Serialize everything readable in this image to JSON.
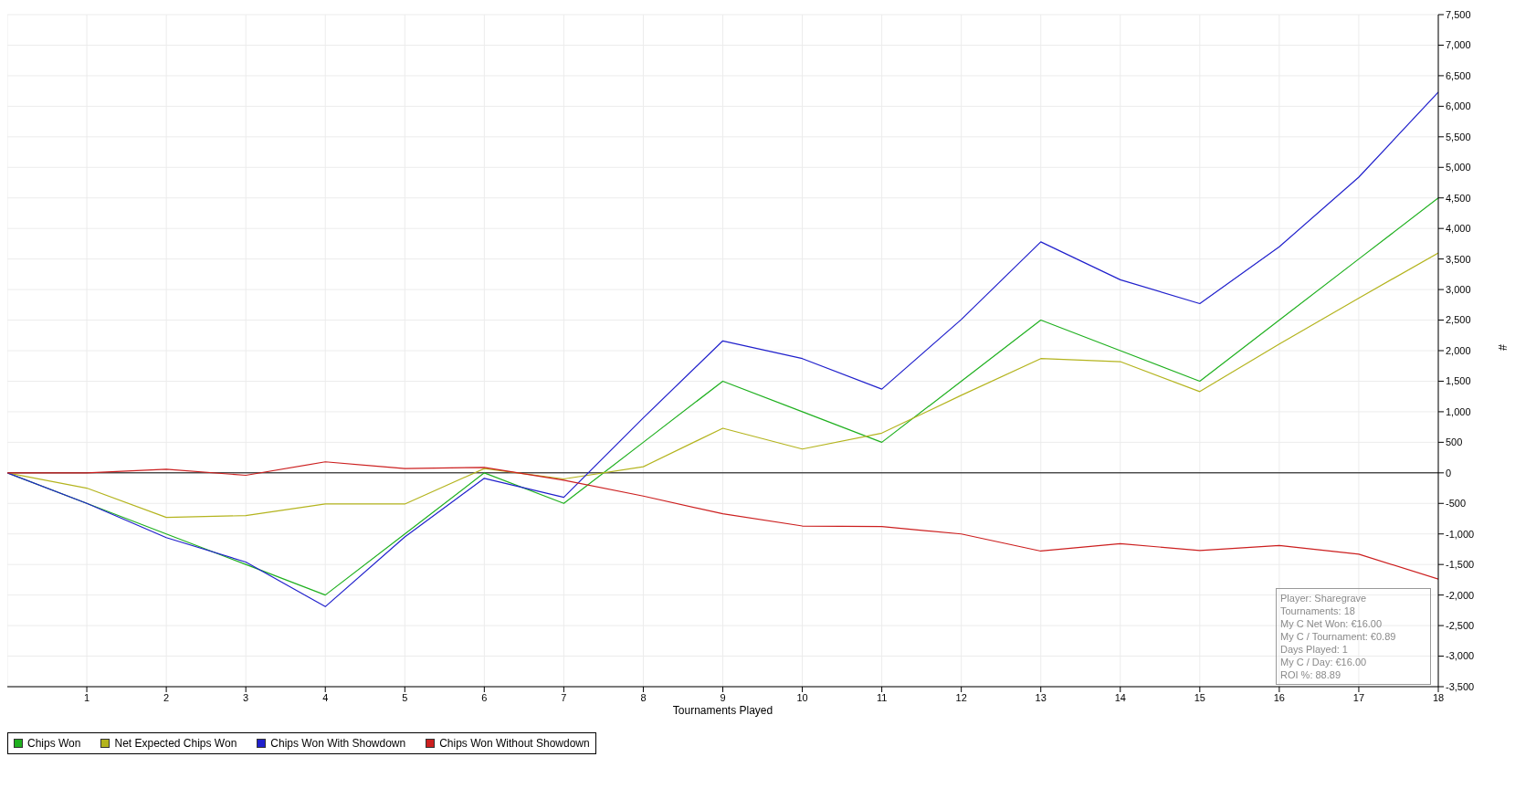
{
  "chart_data": {
    "type": "line",
    "xlabel": "Tournaments Played",
    "ylabel": "#",
    "x": [
      0,
      1,
      2,
      3,
      4,
      5,
      6,
      7,
      8,
      9,
      10,
      11,
      12,
      13,
      14,
      15,
      16,
      17,
      18
    ],
    "series": [
      {
        "name": "Chips Won",
        "color": "#1fb01f",
        "values": [
          0,
          -500,
          -1000,
          -1500,
          -2000,
          -1000,
          0,
          -500,
          500,
          1500,
          1000,
          500,
          1500,
          2500,
          2000,
          1500,
          2500,
          3500,
          4500
        ]
      },
      {
        "name": "Net Expected Chips Won",
        "color": "#b4b41e",
        "values": [
          0,
          -250,
          -730,
          -700,
          -510,
          -510,
          70,
          -100,
          100,
          730,
          390,
          650,
          1270,
          1870,
          1820,
          1330,
          2110,
          2860,
          3600
        ]
      },
      {
        "name": "Chips Won With Showdown",
        "color": "#2020cc",
        "values": [
          0,
          -500,
          -1060,
          -1460,
          -2190,
          -1050,
          -90,
          -400,
          900,
          2160,
          1870,
          1370,
          2510,
          3780,
          3160,
          2770,
          3700,
          4840,
          6230
        ]
      },
      {
        "name": "Chips Won Without Showdown",
        "color": "#cc1f1f",
        "values": [
          0,
          0,
          60,
          -40,
          180,
          70,
          90,
          -120,
          -380,
          -670,
          -870,
          -880,
          -1000,
          -1280,
          -1160,
          -1270,
          -1190,
          -1330,
          -1740
        ]
      }
    ],
    "xlim": [
      0,
      18
    ],
    "xticks": [
      1,
      2,
      3,
      4,
      5,
      6,
      7,
      8,
      9,
      10,
      11,
      12,
      13,
      14,
      15,
      16,
      17,
      18
    ],
    "ylim": [
      -3500,
      7500
    ],
    "yticks": [
      {
        "value": -3500,
        "label": "-3,500"
      },
      {
        "value": -3000,
        "label": "-3,000"
      },
      {
        "value": -2500,
        "label": "-2,500"
      },
      {
        "value": -2000,
        "label": "-2,000"
      },
      {
        "value": -1500,
        "label": "-1,500"
      },
      {
        "value": -1000,
        "label": "-1,000"
      },
      -500,
      0,
      500,
      {
        "value": 1000,
        "label": "1,000"
      },
      {
        "value": 1500,
        "label": "1,500"
      },
      {
        "value": 2000,
        "label": "2,000"
      },
      {
        "value": 2500,
        "label": "2,500"
      },
      {
        "value": 3000,
        "label": "3,000"
      },
      {
        "value": 3500,
        "label": "3,500"
      },
      {
        "value": 4000,
        "label": "4,000"
      },
      {
        "value": 4500,
        "label": "4,500"
      },
      {
        "value": 5000,
        "label": "5,000"
      },
      {
        "value": 5500,
        "label": "5,500"
      },
      {
        "value": 6000,
        "label": "6,000"
      },
      {
        "value": 6500,
        "label": "6,500"
      },
      {
        "value": 7000,
        "label": "7,000"
      },
      {
        "value": 7500,
        "label": "7,500"
      }
    ],
    "ref_lines": [
      {
        "axis": "y",
        "value": 0,
        "color": "#000000"
      }
    ],
    "grid": true,
    "legend": "bottom left",
    "marker": "none",
    "line_style": "solid",
    "annotations": [
      "Player: Sharegrave",
      "Tournaments: 18",
      "My C Net Won: €16.00",
      "My C / Tournament: €0.89",
      "Days Played: 1",
      "My C / Day: €16.00",
      "ROI %: 88.89"
    ]
  }
}
